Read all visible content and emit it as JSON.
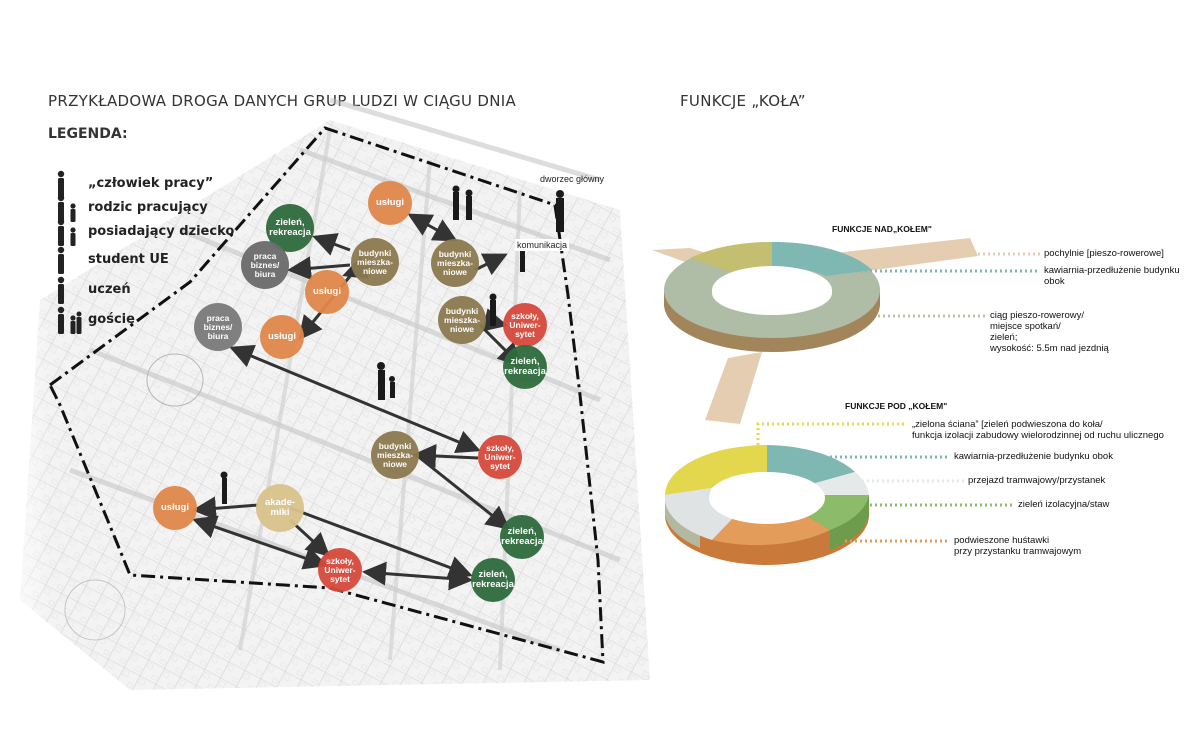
{
  "left_title": "PRZYKŁADOWA DROGA DANYCH GRUP LUDZI W CIĄGU DNIA",
  "right_title": "FUNKCJE „KOŁA”",
  "legend": {
    "title": "LEGENDA:",
    "items": [
      {
        "label": "„człowiek pracy”",
        "icon": "worker-person-icon"
      },
      {
        "label": "rodzic pracujący",
        "icon": "parent-child-icon"
      },
      {
        "label": "posiadający dziecko",
        "icon": "parent-child-icon"
      },
      {
        "label": "student UE",
        "icon": "student-person-icon"
      },
      {
        "label": "uczeń",
        "icon": "pupil-person-icon"
      },
      {
        "label": "goście",
        "icon": "guests-group-icon"
      }
    ]
  },
  "map": {
    "dworzec": "dworzec główny",
    "komunikacja": "komunikacja",
    "nodes": [
      {
        "id": "uslugi1",
        "lines": [
          "usługi"
        ],
        "color": "#e0874a"
      },
      {
        "id": "zielen1",
        "lines": [
          "zieleń,",
          "rekreacja"
        ],
        "color": "#2f6b3c"
      },
      {
        "id": "praca1",
        "lines": [
          "praca",
          "biznes/",
          "biura"
        ],
        "color": "#6b6b6b"
      },
      {
        "id": "budynki1",
        "lines": [
          "budynki",
          "mieszka-",
          "niowe"
        ],
        "color": "#8c7a4f"
      },
      {
        "id": "uslugi2",
        "lines": [
          "usługi"
        ],
        "color": "#e0874a"
      },
      {
        "id": "budynki2",
        "lines": [
          "budynki",
          "mieszka-",
          "niowe"
        ],
        "color": "#8c7a4f"
      },
      {
        "id": "praca2",
        "lines": [
          "praca",
          "biznes/",
          "biura"
        ],
        "color": "#7a7a7a"
      },
      {
        "id": "uslugi3",
        "lines": [
          "usługi"
        ],
        "color": "#e0874a"
      },
      {
        "id": "budynki3",
        "lines": [
          "budynki",
          "mieszka-",
          "niowe"
        ],
        "color": "#8c7a4f"
      },
      {
        "id": "szkoly1",
        "lines": [
          "szkoły,",
          "Uniwer-",
          "sytet"
        ],
        "color": "#d64a3c"
      },
      {
        "id": "zielen2",
        "lines": [
          "zieleń,",
          "rekreacja"
        ],
        "color": "#2f6b3c"
      },
      {
        "id": "budynki4",
        "lines": [
          "budynki",
          "mieszka-",
          "niowe"
        ],
        "color": "#8c7a4f"
      },
      {
        "id": "szkoly2",
        "lines": [
          "szkoły,",
          "Uniwer-",
          "sytet"
        ],
        "color": "#d64a3c"
      },
      {
        "id": "uslugi4",
        "lines": [
          "usługi"
        ],
        "color": "#e0874a"
      },
      {
        "id": "akademiki",
        "lines": [
          "akade-",
          "miki"
        ],
        "color": "#d9c38c"
      },
      {
        "id": "zielen3",
        "lines": [
          "zieleń,",
          "rekreacja"
        ],
        "color": "#2f6b3c"
      },
      {
        "id": "szkoly3",
        "lines": [
          "szkoły,",
          "Uniwer-",
          "sytet"
        ],
        "color": "#d64a3c"
      },
      {
        "id": "zielen4",
        "lines": [
          "zieleń,",
          "rekreacja"
        ],
        "color": "#2f6b3c"
      }
    ]
  },
  "wheel_above": {
    "section_label": "FUNKCJE NAD„KOŁEM\"",
    "annotations": [
      {
        "text": "pochylnie [pieszo-rowerowe]",
        "color": "#e7cdb0"
      },
      {
        "text": "kawiarnia-przedłużenie budynku obok",
        "color": "#7fb7b3"
      },
      {
        "text": "ciąg pieszo-rowerowy/ miejsce spotkań/ zieleń; wysokość: 5.5m nad jezdnią",
        "lines": [
          "ciąg pieszo-rowerowy/",
          "miejsce spotkań/",
          "zieleń;",
          "wysokość: 5.5m nad jezdnią"
        ],
        "color": "#b7c3ab"
      }
    ]
  },
  "wheel_below": {
    "section_label": "FUNKCJE POD „KOŁEM\"",
    "annotations": [
      {
        "lines": [
          "„zielona ściana” [zieleń podwieszona do koła/",
          "funkcja izolacji zabudowy wielorodzinnej od ruchu ulicznego"
        ],
        "color": "#e2d74d"
      },
      {
        "lines": [
          "kawiarnia-przedłużenie budynku obok"
        ],
        "color": "#7fb7b3"
      },
      {
        "lines": [
          "przejazd tramwajowy/przystanek"
        ],
        "color": "#e6e9ea"
      },
      {
        "lines": [
          "zieleń izolacyjna/staw"
        ],
        "color": "#8cbb6a"
      },
      {
        "lines": [
          "podwieszone huśtawki",
          "przy przystanku tramwajowym"
        ],
        "color": "#e39c5a"
      }
    ]
  }
}
